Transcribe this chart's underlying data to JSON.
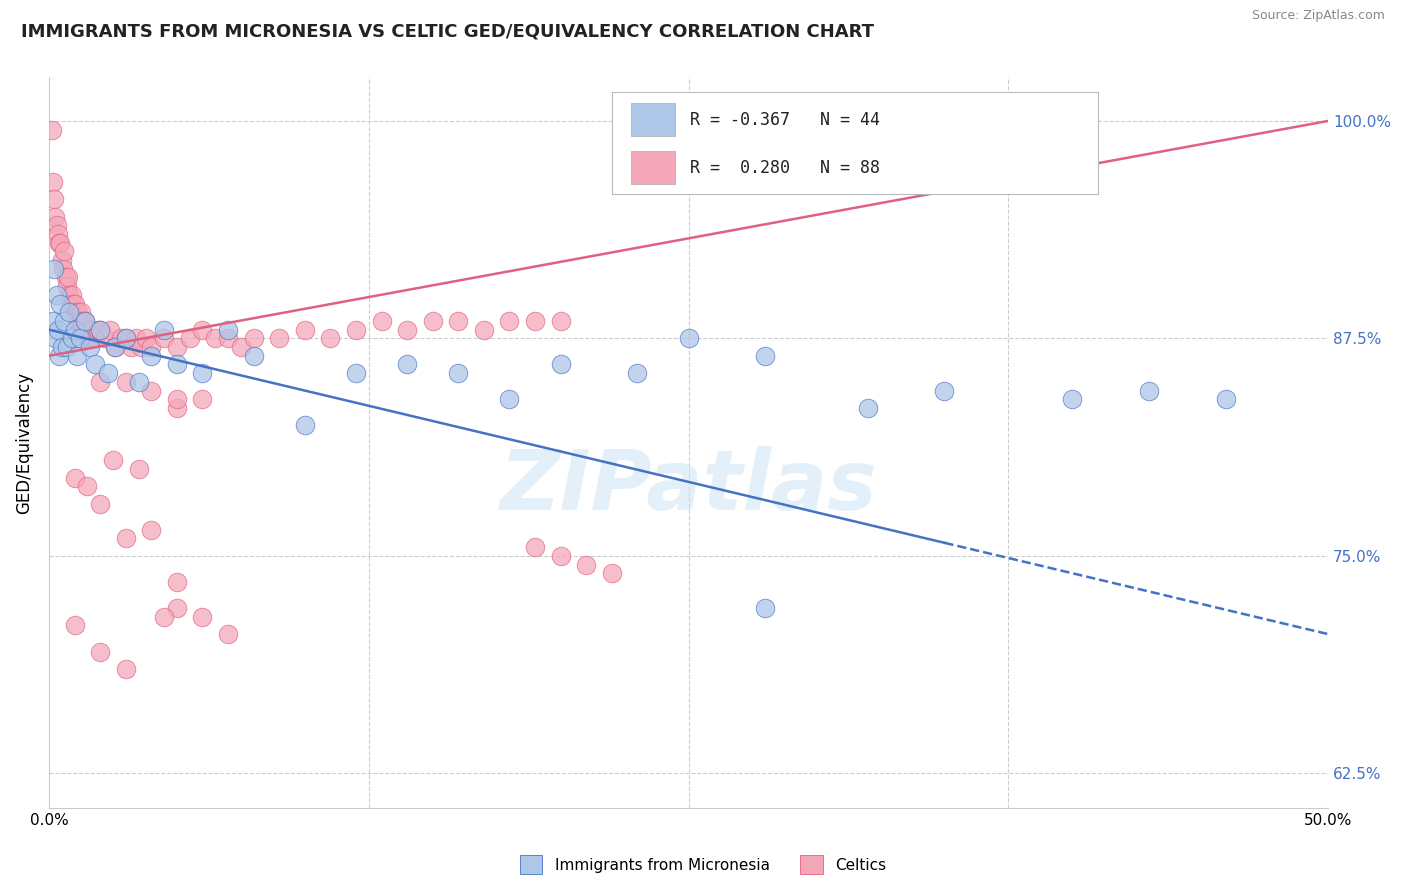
{
  "title": "IMMIGRANTS FROM MICRONESIA VS CELTIC GED/EQUIVALENCY CORRELATION CHART",
  "source": "Source: ZipAtlas.com",
  "ylabel": "GED/Equivalency",
  "legend_label_blue": "Immigrants from Micronesia",
  "legend_label_pink": "Celtics",
  "R_blue": -0.367,
  "N_blue": 44,
  "R_pink": 0.28,
  "N_pink": 88,
  "xlim": [
    0.0,
    50.0
  ],
  "ylim": [
    60.5,
    102.5
  ],
  "xticks": [
    0.0,
    12.5,
    25.0,
    37.5,
    50.0
  ],
  "yticks": [
    62.5,
    75.0,
    87.5,
    100.0
  ],
  "color_blue": "#aec6e8",
  "color_pink": "#f4a7b9",
  "line_color_blue": "#4472c4",
  "line_color_pink": "#e06080",
  "watermark": "ZIPatlas",
  "blue_line_x0": 0.0,
  "blue_line_y0": 88.0,
  "blue_line_x1": 50.0,
  "blue_line_y1": 70.5,
  "blue_solid_end_x": 35.0,
  "pink_line_x0": 0.0,
  "pink_line_y0": 86.5,
  "pink_line_x1": 50.0,
  "pink_line_y1": 100.0,
  "blue_pts_x": [
    0.15,
    0.2,
    0.25,
    0.3,
    0.35,
    0.4,
    0.45,
    0.5,
    0.6,
    0.7,
    0.8,
    0.9,
    1.0,
    1.1,
    1.2,
    1.4,
    1.6,
    1.8,
    2.0,
    2.3,
    2.6,
    3.0,
    3.5,
    4.0,
    4.5,
    5.0,
    6.0,
    7.0,
    8.0,
    10.0,
    12.0,
    14.0,
    16.0,
    18.0,
    20.0,
    23.0,
    25.0,
    28.0,
    32.0,
    35.0,
    40.0,
    43.0,
    46.0,
    28.0
  ],
  "blue_pts_y": [
    88.5,
    91.5,
    87.5,
    90.0,
    88.0,
    86.5,
    89.5,
    87.0,
    88.5,
    87.0,
    89.0,
    87.5,
    88.0,
    86.5,
    87.5,
    88.5,
    87.0,
    86.0,
    88.0,
    85.5,
    87.0,
    87.5,
    85.0,
    86.5,
    88.0,
    86.0,
    85.5,
    88.0,
    86.5,
    82.5,
    85.5,
    86.0,
    85.5,
    84.0,
    86.0,
    85.5,
    87.5,
    86.5,
    83.5,
    84.5,
    84.0,
    84.5,
    84.0,
    72.0
  ],
  "pink_pts_x": [
    0.1,
    0.15,
    0.2,
    0.25,
    0.3,
    0.35,
    0.4,
    0.45,
    0.5,
    0.55,
    0.6,
    0.65,
    0.7,
    0.75,
    0.8,
    0.85,
    0.9,
    0.95,
    1.0,
    1.05,
    1.1,
    1.15,
    1.2,
    1.25,
    1.3,
    1.35,
    1.4,
    1.5,
    1.6,
    1.7,
    1.8,
    1.9,
    2.0,
    2.2,
    2.4,
    2.6,
    2.8,
    3.0,
    3.2,
    3.4,
    3.6,
    3.8,
    4.0,
    4.5,
    5.0,
    5.5,
    6.0,
    6.5,
    7.0,
    7.5,
    8.0,
    9.0,
    10.0,
    11.0,
    12.0,
    13.0,
    14.0,
    15.0,
    16.0,
    17.0,
    18.0,
    19.0,
    20.0,
    5.0,
    6.0,
    2.0,
    3.0,
    4.0,
    5.0,
    2.5,
    3.5,
    1.0,
    1.5,
    2.0,
    3.0,
    4.0,
    5.0,
    2.0,
    3.0,
    1.0,
    5.0,
    4.5,
    6.0,
    7.0,
    19.0,
    20.0,
    21.0,
    22.0
  ],
  "pink_pts_y": [
    99.5,
    96.5,
    95.5,
    94.5,
    94.0,
    93.5,
    93.0,
    93.0,
    92.0,
    91.5,
    92.5,
    91.0,
    90.5,
    91.0,
    90.0,
    89.5,
    90.0,
    89.5,
    89.5,
    89.0,
    88.5,
    89.0,
    88.5,
    89.0,
    88.5,
    88.0,
    88.5,
    87.5,
    88.0,
    87.5,
    87.5,
    88.0,
    88.0,
    87.5,
    88.0,
    87.0,
    87.5,
    87.5,
    87.0,
    87.5,
    87.0,
    87.5,
    87.0,
    87.5,
    87.0,
    87.5,
    88.0,
    87.5,
    87.5,
    87.0,
    87.5,
    87.5,
    88.0,
    87.5,
    88.0,
    88.5,
    88.0,
    88.5,
    88.5,
    88.0,
    88.5,
    88.5,
    88.5,
    83.5,
    84.0,
    85.0,
    85.0,
    84.5,
    84.0,
    80.5,
    80.0,
    79.5,
    79.0,
    78.0,
    76.0,
    76.5,
    73.5,
    69.5,
    68.5,
    71.0,
    72.0,
    71.5,
    71.5,
    70.5,
    75.5,
    75.0,
    74.5,
    74.0
  ]
}
